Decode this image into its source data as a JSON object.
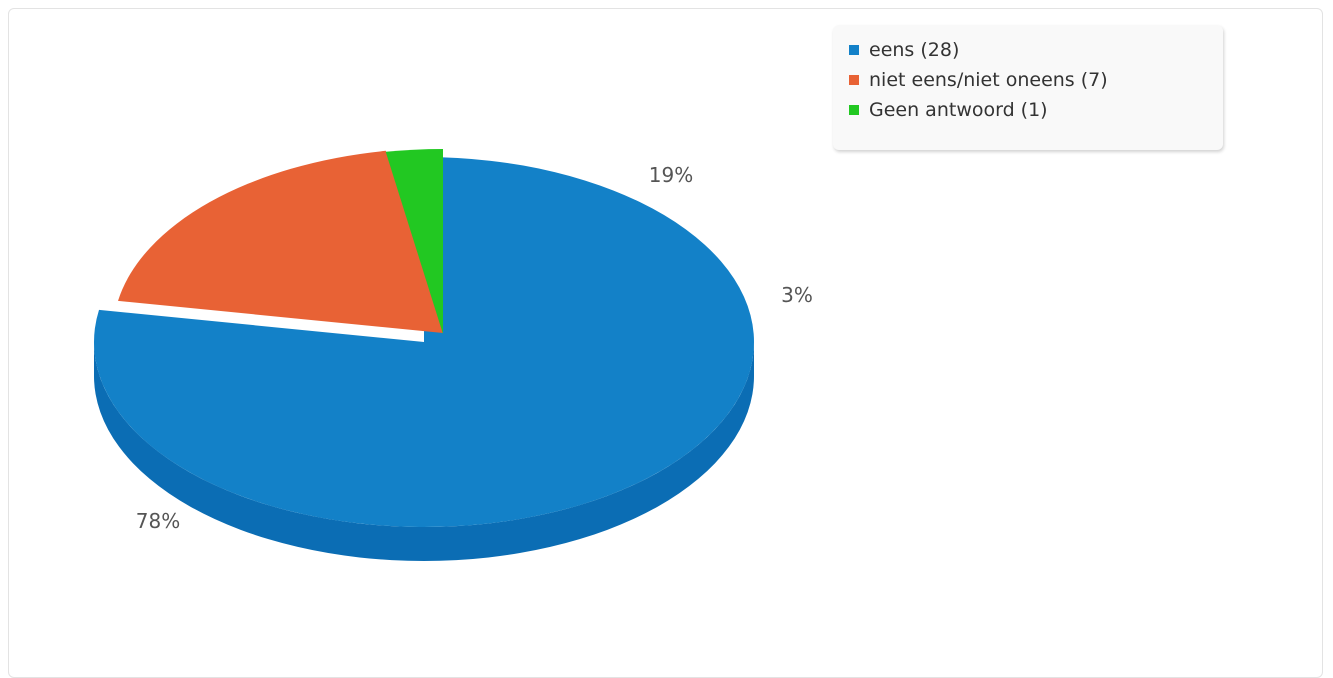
{
  "chart_data": {
    "type": "pie",
    "style": "3d-exploded",
    "series": [
      {
        "name": "eens",
        "count": 28,
        "label": "eens (28)",
        "percent_label": "78%",
        "color": "#1381c8",
        "side_color": "#0b6db4"
      },
      {
        "name": "niet eens/niet oneens",
        "count": 7,
        "label": "niet eens/niet oneens (7)",
        "percent_label": "19%",
        "color": "#e86235",
        "side_color": "#c94f25"
      },
      {
        "name": "Geen antwoord",
        "count": 1,
        "label": "Geen antwoord (1)",
        "percent_label": "3%",
        "color": "#22c822",
        "side_color": "#14a814"
      }
    ],
    "legend_position": "top-right"
  }
}
